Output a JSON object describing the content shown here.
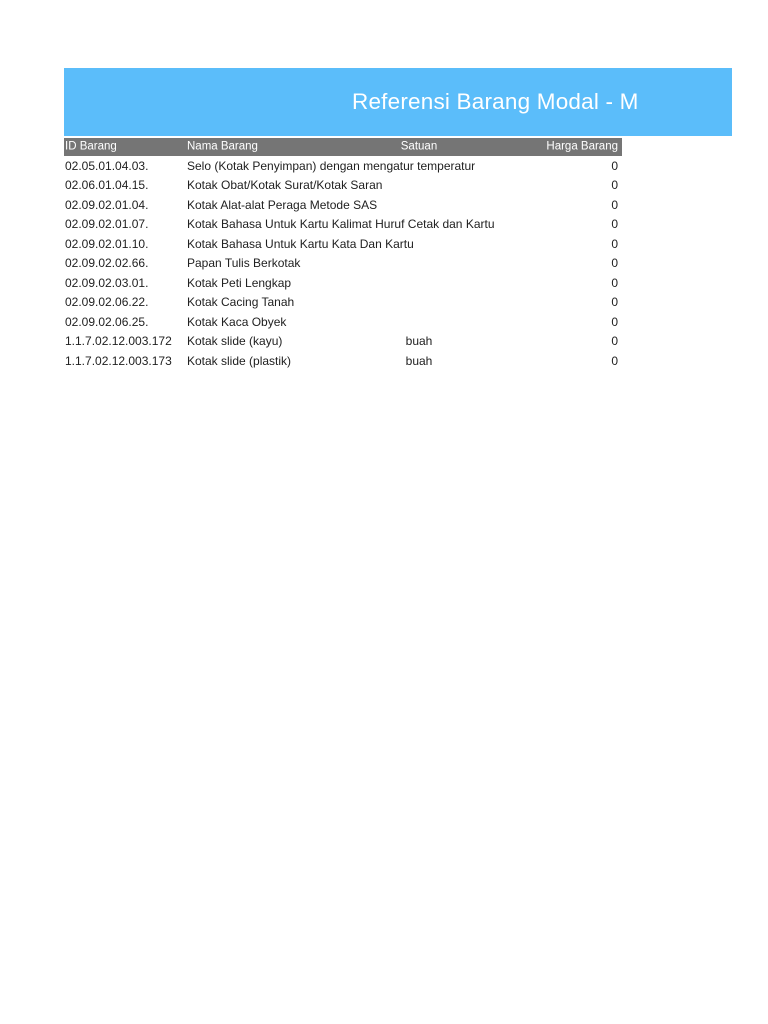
{
  "report": {
    "title": "Referensi Barang Modal - M",
    "colors": {
      "title_band": "#5bbdfa",
      "title_text": "#ffffff",
      "header_bg": "#757575",
      "header_text": "#ffffff",
      "body_text": "#212121",
      "page_bg": "#ffffff"
    }
  },
  "table": {
    "columns": [
      "ID Barang",
      "Nama Barang",
      "Satuan",
      "Harga Barang"
    ],
    "rows": [
      {
        "id": "02.05.01.04.03.",
        "nama": "Selo (Kotak Penyimpan) dengan mengatur temperatur",
        "satuan": "",
        "harga": "0"
      },
      {
        "id": "02.06.01.04.15.",
        "nama": "Kotak Obat/Kotak Surat/Kotak Saran",
        "satuan": "",
        "harga": "0"
      },
      {
        "id": "02.09.02.01.04.",
        "nama": "Kotak Alat-alat Peraga Metode SAS",
        "satuan": "",
        "harga": "0"
      },
      {
        "id": "02.09.02.01.07.",
        "nama": "Kotak Bahasa Untuk Kartu Kalimat Huruf Cetak dan Kartu",
        "satuan": "",
        "harga": "0"
      },
      {
        "id": "02.09.02.01.10.",
        "nama": "Kotak Bahasa Untuk Kartu Kata Dan Kartu",
        "satuan": "",
        "harga": "0"
      },
      {
        "id": "02.09.02.02.66.",
        "nama": "Papan Tulis Berkotak",
        "satuan": "",
        "harga": "0"
      },
      {
        "id": "02.09.02.03.01.",
        "nama": "Kotak Peti Lengkap",
        "satuan": "",
        "harga": "0"
      },
      {
        "id": "02.09.02.06.22.",
        "nama": "Kotak Cacing Tanah",
        "satuan": "",
        "harga": "0"
      },
      {
        "id": "02.09.02.06.25.",
        "nama": "Kotak Kaca Obyek",
        "satuan": "",
        "harga": "0"
      },
      {
        "id": "1.1.7.02.12.003.172",
        "nama": "Kotak slide (kayu)",
        "satuan": "buah",
        "harga": "0"
      },
      {
        "id": "1.1.7.02.12.003.173",
        "nama": "Kotak slide (plastik)",
        "satuan": "buah",
        "harga": "0"
      }
    ]
  }
}
